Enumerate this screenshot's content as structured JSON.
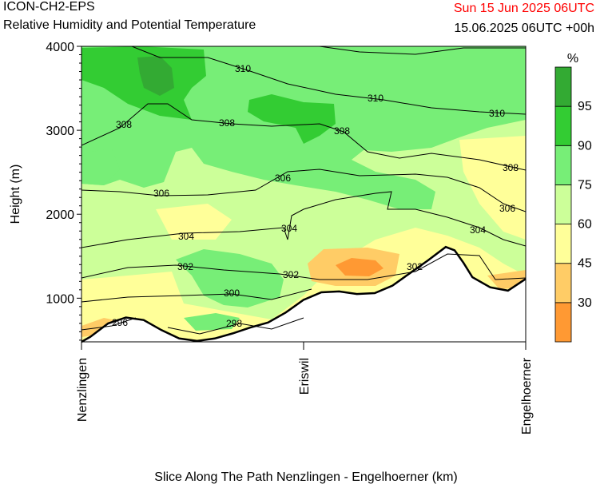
{
  "header": {
    "model": "ICON-CH2-EPS",
    "subtitle": "Relative Humidity and Potential Temperature",
    "run_date": "Sun 15 Jun 2025 06UTC",
    "valid": "15.06.2025 06UTC +00h"
  },
  "colorbar": {
    "unit": "%",
    "levels": [
      "30",
      "45",
      "60",
      "75",
      "90",
      "95"
    ],
    "colors": [
      "#ff9933",
      "#ffcc66",
      "#ffff99",
      "#ccff99",
      "#77ee77",
      "#33cc33",
      "#33aa33"
    ]
  },
  "chart_data": {
    "type": "cross-section",
    "xlabel": "Slice Along The Path Nenzlingen - Engelhoerner (km)",
    "ylabel": "Height (m)",
    "ylim": [
      480,
      4000
    ],
    "yticks": [
      "1000",
      "2000",
      "3000",
      "4000"
    ],
    "stations": [
      "Nenzlingen",
      "Eriswil",
      "Engelhoerner"
    ],
    "isentrope_labels": [
      "296",
      "298",
      "300",
      "302",
      "302",
      "302",
      "304",
      "304",
      "304",
      "306",
      "306",
      "306",
      "308",
      "308",
      "308",
      "308",
      "310",
      "310",
      "310"
    ],
    "terrain": {
      "x": [
        0.0,
        0.02,
        0.06,
        0.1,
        0.14,
        0.18,
        0.22,
        0.26,
        0.3,
        0.34,
        0.38,
        0.42,
        0.46,
        0.5,
        0.54,
        0.58,
        0.62,
        0.66,
        0.7,
        0.74,
        0.78,
        0.82,
        0.84,
        0.86,
        0.88,
        0.92,
        0.96,
        1.0
      ],
      "height_m": [
        480,
        540,
        700,
        770,
        740,
        620,
        520,
        490,
        520,
        580,
        650,
        710,
        830,
        980,
        1070,
        1080,
        1050,
        1060,
        1150,
        1300,
        1450,
        1610,
        1570,
        1420,
        1250,
        1130,
        1090,
        1230
      ]
    }
  }
}
